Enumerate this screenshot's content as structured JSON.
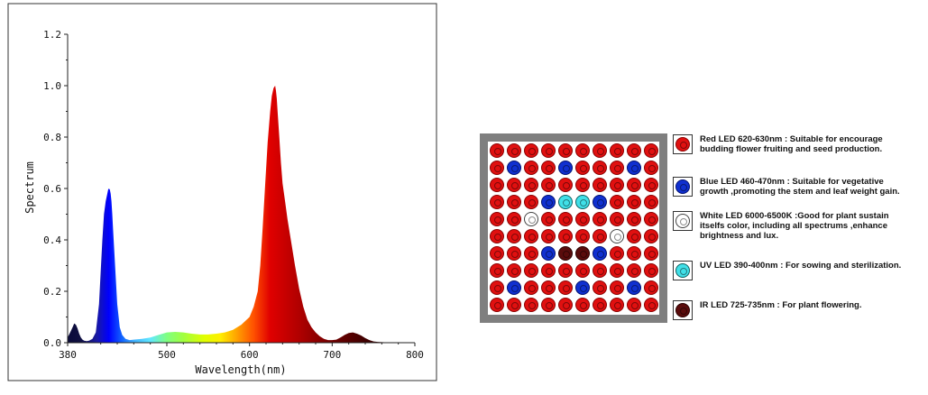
{
  "chart_data": {
    "type": "area",
    "title": "",
    "xlabel": "Wavelength(nm)",
    "ylabel": "Spectrum",
    "xlim": [
      380,
      800
    ],
    "ylim": [
      0,
      1.2
    ],
    "xticks": [
      380,
      500,
      600,
      700,
      800
    ],
    "yticks": [
      0.0,
      0.2,
      0.4,
      0.6,
      0.8,
      1.0,
      1.2
    ],
    "ytick_labels": [
      "0.0",
      "0.2",
      "0.4",
      "0.6",
      "0.8",
      "1.0",
      "1.2"
    ],
    "grid": false,
    "series": [
      {
        "x": [
          380,
          383,
          386,
          388,
          390,
          392,
          394,
          396,
          398,
          400,
          403,
          406,
          410,
          414,
          418,
          420,
          422,
          424,
          426,
          428,
          429,
          430,
          431,
          432,
          433,
          434,
          435,
          437,
          440,
          443,
          446,
          450,
          455,
          460,
          470,
          480,
          490,
          500,
          510,
          520,
          530,
          540,
          550,
          560,
          570,
          580,
          590,
          600,
          605,
          610,
          613,
          616,
          619,
          622,
          625,
          627,
          629,
          631,
          632,
          633,
          634,
          636,
          638,
          640,
          643,
          646,
          650,
          655,
          660,
          665,
          670,
          675,
          680,
          685,
          690,
          695,
          700,
          705,
          710,
          715,
          720,
          725,
          730,
          735,
          740,
          745,
          750,
          755,
          760,
          770,
          780,
          790,
          800
        ],
        "values": [
          0.02,
          0.04,
          0.06,
          0.075,
          0.07,
          0.055,
          0.035,
          0.02,
          0.012,
          0.008,
          0.006,
          0.008,
          0.015,
          0.04,
          0.15,
          0.28,
          0.4,
          0.5,
          0.55,
          0.58,
          0.595,
          0.6,
          0.595,
          0.58,
          0.55,
          0.5,
          0.44,
          0.32,
          0.15,
          0.06,
          0.03,
          0.015,
          0.01,
          0.012,
          0.015,
          0.02,
          0.03,
          0.04,
          0.042,
          0.04,
          0.035,
          0.032,
          0.032,
          0.035,
          0.04,
          0.05,
          0.07,
          0.1,
          0.14,
          0.2,
          0.3,
          0.45,
          0.62,
          0.78,
          0.9,
          0.96,
          0.99,
          1.0,
          0.98,
          0.95,
          0.9,
          0.8,
          0.7,
          0.62,
          0.55,
          0.48,
          0.4,
          0.3,
          0.21,
          0.14,
          0.09,
          0.06,
          0.04,
          0.025,
          0.015,
          0.01,
          0.01,
          0.012,
          0.02,
          0.03,
          0.038,
          0.04,
          0.035,
          0.028,
          0.018,
          0.01,
          0.005,
          0.003,
          0.002,
          0.001,
          0.001,
          0.001,
          0.001
        ]
      }
    ]
  },
  "led_panel": {
    "rows": [
      [
        "red",
        "red",
        "red",
        "red",
        "red",
        "red",
        "red",
        "red",
        "red",
        "red"
      ],
      [
        "red",
        "blue",
        "red",
        "red",
        "blue",
        "red",
        "red",
        "red",
        "blue",
        "red"
      ],
      [
        "red",
        "red",
        "red",
        "red",
        "red",
        "red",
        "red",
        "red",
        "red",
        "red"
      ],
      [
        "red",
        "red",
        "red",
        "blue",
        "uv",
        "uv",
        "blue",
        "red",
        "red",
        "red"
      ],
      [
        "red",
        "red",
        "white",
        "red",
        "red",
        "red",
        "red",
        "red",
        "red",
        "red"
      ],
      [
        "red",
        "red",
        "red",
        "red",
        "red",
        "red",
        "red",
        "white",
        "red",
        "red"
      ],
      [
        "red",
        "red",
        "red",
        "blue",
        "ir",
        "ir",
        "blue",
        "red",
        "red",
        "red"
      ],
      [
        "red",
        "red",
        "red",
        "red",
        "red",
        "red",
        "red",
        "red",
        "red",
        "red"
      ],
      [
        "red",
        "blue",
        "red",
        "red",
        "red",
        "blue",
        "red",
        "red",
        "blue",
        "red"
      ],
      [
        "red",
        "red",
        "red",
        "red",
        "red",
        "red",
        "red",
        "red",
        "red",
        "red"
      ]
    ]
  },
  "legend": [
    {
      "type": "red",
      "text": "Red LED 620-630nm  : Suitable for encourage\nbudding flower fruiting and seed production."
    },
    {
      "type": "blue",
      "text": "Blue LED 460-470nm   : Suitable for vegetative\ngrowth ,promoting the stem and leaf weight gain."
    },
    {
      "type": "white",
      "text": "White LED 6000-6500K :Good for plant sustain\nitselfs color, including all spectrums ,enhance\nbrightness and lux."
    },
    {
      "type": "uv",
      "text": "UV LED  390-400nm : For sowing and sterilization."
    },
    {
      "type": "ir",
      "text": "IR LED   725-735nm   : For plant flowering."
    }
  ]
}
